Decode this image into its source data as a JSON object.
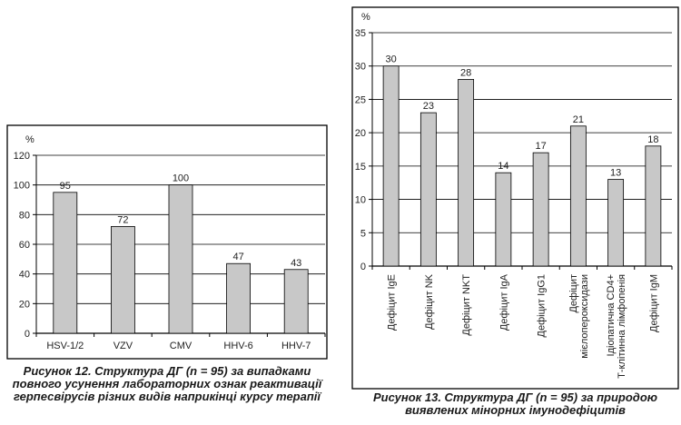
{
  "chart_data": [
    {
      "type": "bar",
      "ylabel": "%",
      "ylim": [
        0,
        120
      ],
      "yticks": [
        0,
        20,
        40,
        60,
        80,
        100,
        120
      ],
      "categories": [
        "HSV-1/2",
        "VZV",
        "CMV",
        "HHV-6",
        "HHV-7"
      ],
      "values": [
        95,
        72,
        100,
        47,
        43
      ],
      "title": "Рисунок 12. Структура ДГ (n = 95) за випадками повного усунення лабораторних ознак реактивації герпесвірусів різних видів наприкінці курсу терапії"
    },
    {
      "type": "bar",
      "ylabel": "%",
      "ylim": [
        0,
        35
      ],
      "yticks": [
        0,
        5,
        10,
        15,
        20,
        25,
        30,
        35
      ],
      "categories": [
        "Дефіцит IgE",
        "Дефіцит NK",
        "Дефіцит NKT",
        "Дефіцит IgA",
        "Дефіцит IgG1",
        "Дефіцит\nмієлопероксидази",
        "Ідіопатична CD4+\nТ-клітинна лімфопенія",
        "Дефіцит IgM"
      ],
      "values": [
        30,
        23,
        28,
        14,
        17,
        21,
        13,
        18
      ],
      "title": "Рисунок 13. Структура ДГ (n = 95) за природою виявлених мінорних імунодефіцитів"
    }
  ],
  "colors": {
    "bar": "#c8c8c8",
    "stroke": "#000000"
  }
}
